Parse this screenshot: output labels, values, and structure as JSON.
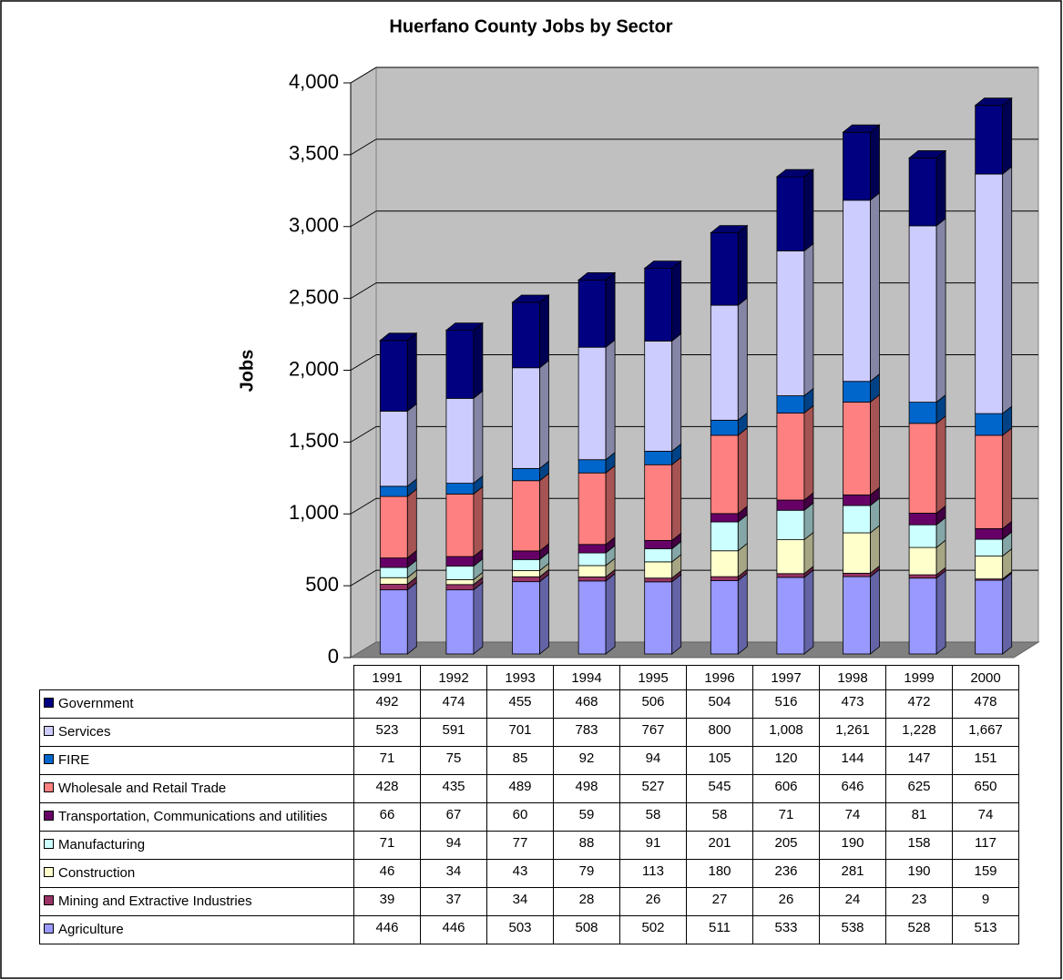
{
  "chart_data": {
    "type": "bar",
    "stacked": true,
    "title": "Huerfano County Jobs by Sector",
    "ylabel": "Jobs",
    "categories": [
      "1991",
      "1992",
      "1993",
      "1994",
      "1995",
      "1996",
      "1997",
      "1998",
      "1999",
      "2000"
    ],
    "series": [
      {
        "name": "Agriculture",
        "color": "#9999ff",
        "values": [
          446,
          446,
          503,
          508,
          502,
          511,
          533,
          538,
          528,
          513
        ]
      },
      {
        "name": "Mining and Extractive Industries",
        "color": "#993366",
        "values": [
          39,
          37,
          34,
          28,
          26,
          27,
          26,
          24,
          23,
          9
        ]
      },
      {
        "name": "Construction",
        "color": "#ffffcc",
        "values": [
          46,
          34,
          43,
          79,
          113,
          180,
          236,
          281,
          190,
          159
        ]
      },
      {
        "name": "Manufacturing",
        "color": "#ccffff",
        "values": [
          71,
          94,
          77,
          88,
          91,
          201,
          205,
          190,
          158,
          117
        ]
      },
      {
        "name": "Transportation, Communications and utilities",
        "color": "#660066",
        "values": [
          66,
          67,
          60,
          59,
          58,
          58,
          71,
          74,
          81,
          74
        ]
      },
      {
        "name": "Wholesale and Retail Trade",
        "color": "#ff8080",
        "values": [
          428,
          435,
          489,
          498,
          527,
          545,
          606,
          646,
          625,
          650
        ]
      },
      {
        "name": "FIRE",
        "color": "#0066cc",
        "values": [
          71,
          75,
          85,
          92,
          94,
          105,
          120,
          144,
          147,
          151
        ]
      },
      {
        "name": "Services",
        "color": "#ccccff",
        "values": [
          523,
          591,
          701,
          783,
          767,
          800,
          1008,
          1261,
          1228,
          1667
        ],
        "value_labels": [
          "523",
          "591",
          "701",
          "783",
          "767",
          "800",
          "1,008",
          "1,261",
          "1,228",
          "1,667"
        ]
      },
      {
        "name": "Government",
        "color": "#000080",
        "values": [
          492,
          474,
          455,
          468,
          506,
          504,
          516,
          473,
          472,
          478
        ]
      }
    ],
    "ylim": [
      0,
      4000
    ],
    "yticks": [
      0,
      500,
      {
        "value": 1000,
        "label": "1,000"
      },
      {
        "value": 1500,
        "label": "1,500"
      },
      {
        "value": 2000,
        "label": "2,000"
      },
      {
        "value": 2500,
        "label": "2,500"
      },
      {
        "value": 3000,
        "label": "3,000"
      },
      {
        "value": 3500,
        "label": "3,500"
      },
      {
        "value": 4000,
        "label": "4,000"
      }
    ],
    "grid": true
  }
}
